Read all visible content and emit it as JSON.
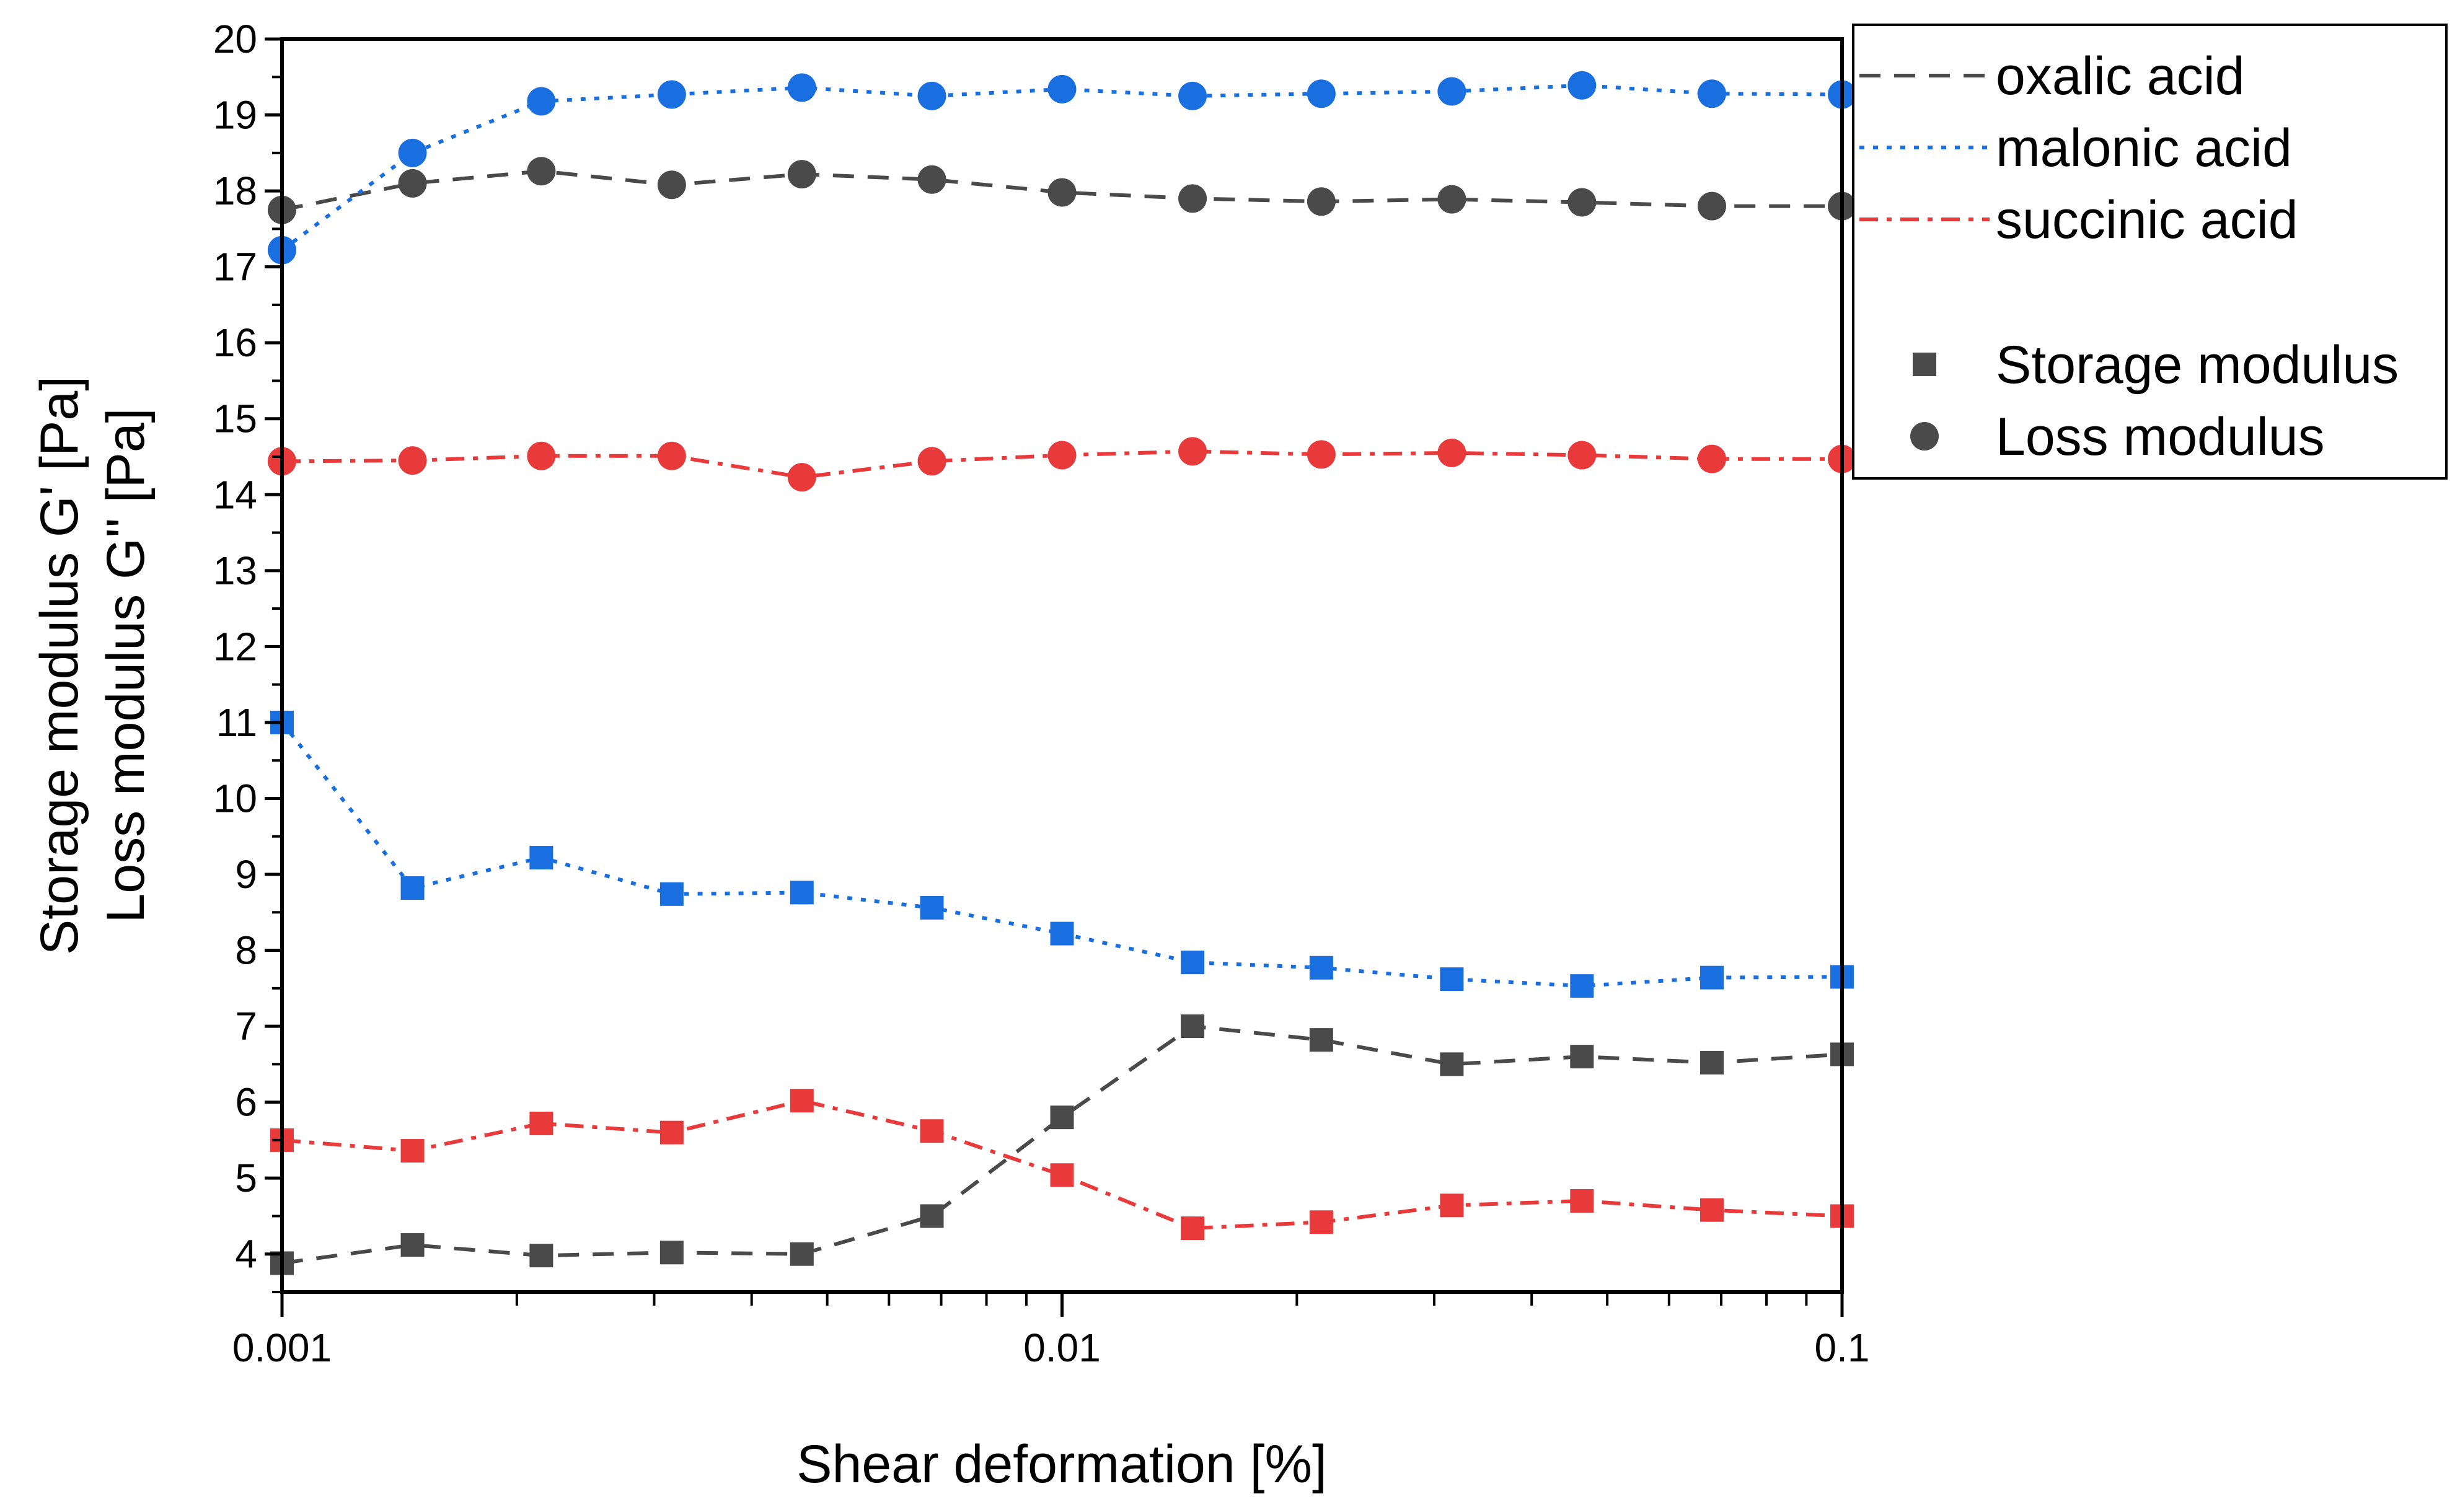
{
  "chart_data": {
    "type": "line",
    "title": "",
    "xlabel": "Shear deformation [%]",
    "ylabel_lines": [
      "Storage modulus G' [Pa]",
      "Loss modulus G'' [Pa]"
    ],
    "xscale": "log",
    "xlim": [
      0.001,
      0.1
    ],
    "ylim": [
      3.5,
      20
    ],
    "x_ticks": [
      0.001,
      0.01,
      0.1
    ],
    "x_tick_labels": [
      "0.001",
      "0.01",
      "0.1"
    ],
    "y_ticks": [
      4,
      5,
      6,
      7,
      8,
      9,
      10,
      11,
      12,
      13,
      14,
      15,
      16,
      17,
      18,
      19,
      20
    ],
    "y_tick_labels": [
      "4",
      "5",
      "6",
      "7",
      "8",
      "9",
      "10",
      "11",
      "12",
      "13",
      "14",
      "15",
      "16",
      "17",
      "18",
      "19",
      "20"
    ],
    "x": [
      0.001,
      0.00147,
      0.00215,
      0.00316,
      0.00464,
      0.00681,
      0.01,
      0.0147,
      0.0215,
      0.0316,
      0.0464,
      0.0681,
      0.1
    ],
    "series": [
      {
        "name": "oxalic acid",
        "modulus": "Storage modulus",
        "color": "#4a4a4a",
        "dash": "dash",
        "marker": "square",
        "values": [
          3.88,
          4.12,
          3.98,
          4.02,
          4.0,
          4.5,
          5.8,
          7.0,
          6.82,
          6.5,
          6.6,
          6.52,
          6.63
        ]
      },
      {
        "name": "malonic acid",
        "modulus": "Storage modulus",
        "color": "#1a6fe0",
        "dash": "dot",
        "marker": "square",
        "values": [
          11.0,
          8.82,
          9.22,
          8.74,
          8.76,
          8.56,
          8.22,
          7.84,
          7.77,
          7.62,
          7.53,
          7.64,
          7.65
        ]
      },
      {
        "name": "succinic acid",
        "modulus": "Storage modulus",
        "color": "#e83a3a",
        "dash": "dashdot",
        "marker": "square",
        "values": [
          5.5,
          5.36,
          5.72,
          5.6,
          6.02,
          5.62,
          5.04,
          4.34,
          4.42,
          4.64,
          4.7,
          4.58,
          4.5
        ]
      },
      {
        "name": "oxalic acid",
        "modulus": "Loss modulus",
        "color": "#4a4a4a",
        "dash": "dash",
        "marker": "circle",
        "values": [
          17.75,
          18.1,
          18.26,
          18.08,
          18.22,
          18.15,
          17.98,
          17.9,
          17.86,
          17.89,
          17.85,
          17.8,
          17.8
        ]
      },
      {
        "name": "malonic acid",
        "modulus": "Loss modulus",
        "color": "#1a6fe0",
        "dash": "dot",
        "marker": "circle",
        "values": [
          17.22,
          18.5,
          19.18,
          19.27,
          19.36,
          19.25,
          19.34,
          19.25,
          19.28,
          19.31,
          19.39,
          19.28,
          19.27
        ]
      },
      {
        "name": "succinic acid",
        "modulus": "Loss modulus",
        "color": "#e83a3a",
        "dash": "dashdot",
        "marker": "circle",
        "values": [
          14.44,
          14.45,
          14.51,
          14.51,
          14.23,
          14.44,
          14.52,
          14.57,
          14.53,
          14.55,
          14.52,
          14.47,
          14.47
        ]
      }
    ],
    "legend": {
      "placement": "outside-right-top",
      "line_entries": [
        {
          "label": "oxalic acid",
          "color": "#4a4a4a",
          "dash": "dash"
        },
        {
          "label": "malonic acid",
          "color": "#1a6fe0",
          "dash": "dot"
        },
        {
          "label": "succinic acid",
          "color": "#e83a3a",
          "dash": "dashdot"
        }
      ],
      "marker_entries": [
        {
          "label": "Storage modulus",
          "marker": "square",
          "color": "#4a4a4a"
        },
        {
          "label": "Loss modulus",
          "marker": "circle",
          "color": "#4a4a4a"
        }
      ]
    },
    "grid": false
  }
}
